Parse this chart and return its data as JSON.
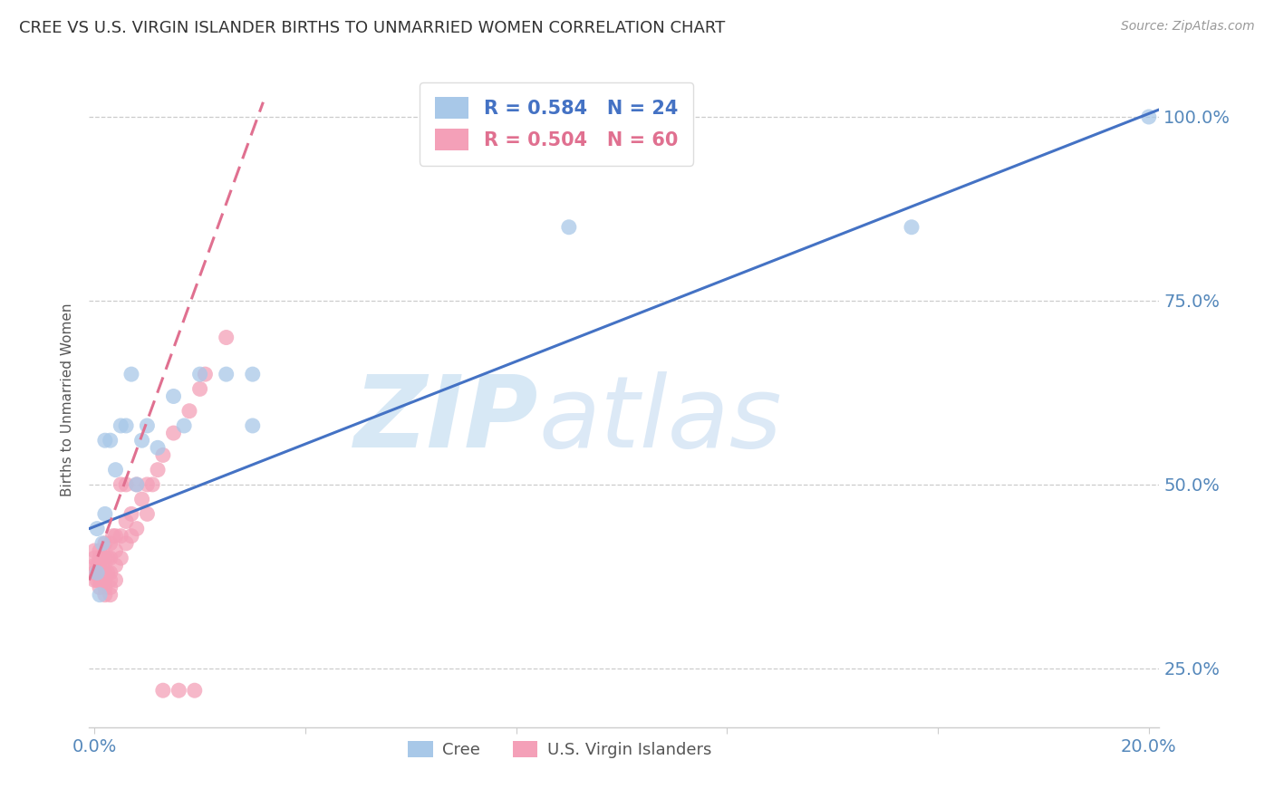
{
  "title": "CREE VS U.S. VIRGIN ISLANDER BIRTHS TO UNMARRIED WOMEN CORRELATION CHART",
  "source": "Source: ZipAtlas.com",
  "ylabel": "Births to Unmarried Women",
  "cree_R": 0.584,
  "cree_N": 24,
  "usvi_R": 0.504,
  "usvi_N": 60,
  "cree_color": "#A8C8E8",
  "usvi_color": "#F4A0B8",
  "cree_line_color": "#4472C4",
  "usvi_line_color": "#E07090",
  "xmin": -0.001,
  "xmax": 0.202,
  "ymin": 0.17,
  "ymax": 1.06,
  "yticks": [
    0.25,
    0.5,
    0.75,
    1.0
  ],
  "ytick_labels": [
    "25.0%",
    "50.0%",
    "75.0%",
    "100.0%"
  ],
  "xticks": [
    0.0,
    0.04,
    0.08,
    0.12,
    0.16,
    0.2
  ],
  "cree_x": [
    0.0005,
    0.0005,
    0.001,
    0.0015,
    0.002,
    0.002,
    0.003,
    0.004,
    0.005,
    0.006,
    0.007,
    0.008,
    0.009,
    0.01,
    0.012,
    0.015,
    0.017,
    0.02,
    0.025,
    0.03,
    0.03,
    0.09,
    0.155,
    0.2
  ],
  "cree_y": [
    0.38,
    0.44,
    0.35,
    0.42,
    0.46,
    0.56,
    0.56,
    0.52,
    0.58,
    0.58,
    0.65,
    0.5,
    0.56,
    0.58,
    0.55,
    0.62,
    0.58,
    0.65,
    0.65,
    0.58,
    0.65,
    0.85,
    0.85,
    1.0
  ],
  "usvi_x": [
    0.0,
    0.0,
    0.0,
    0.0,
    0.0,
    0.0005,
    0.0005,
    0.0005,
    0.001,
    0.001,
    0.001,
    0.001,
    0.001,
    0.001,
    0.0015,
    0.0015,
    0.0015,
    0.002,
    0.002,
    0.002,
    0.002,
    0.002,
    0.002,
    0.0025,
    0.0025,
    0.003,
    0.003,
    0.003,
    0.003,
    0.003,
    0.003,
    0.0035,
    0.004,
    0.004,
    0.004,
    0.004,
    0.005,
    0.005,
    0.005,
    0.006,
    0.006,
    0.006,
    0.007,
    0.007,
    0.008,
    0.008,
    0.009,
    0.01,
    0.01,
    0.011,
    0.012,
    0.013,
    0.013,
    0.015,
    0.016,
    0.018,
    0.019,
    0.02,
    0.021,
    0.025
  ],
  "usvi_y": [
    0.37,
    0.38,
    0.39,
    0.4,
    0.41,
    0.37,
    0.38,
    0.39,
    0.36,
    0.37,
    0.38,
    0.39,
    0.4,
    0.41,
    0.37,
    0.38,
    0.4,
    0.35,
    0.36,
    0.37,
    0.38,
    0.4,
    0.42,
    0.38,
    0.4,
    0.35,
    0.36,
    0.37,
    0.38,
    0.4,
    0.42,
    0.43,
    0.37,
    0.39,
    0.41,
    0.43,
    0.4,
    0.43,
    0.5,
    0.42,
    0.45,
    0.5,
    0.43,
    0.46,
    0.44,
    0.5,
    0.48,
    0.46,
    0.5,
    0.5,
    0.52,
    0.54,
    0.22,
    0.57,
    0.22,
    0.6,
    0.22,
    0.63,
    0.65,
    0.7
  ],
  "background_color": "#FFFFFF",
  "grid_color": "#CCCCCC",
  "axis_color": "#5588BB",
  "title_color": "#333333",
  "legend_r_color_cree": "#4472C4",
  "legend_r_color_usvi": "#E07090",
  "usvi_line_x_start": -0.001,
  "usvi_line_x_end": 0.032,
  "cree_line_x_start": -0.001,
  "cree_line_x_end": 0.202
}
